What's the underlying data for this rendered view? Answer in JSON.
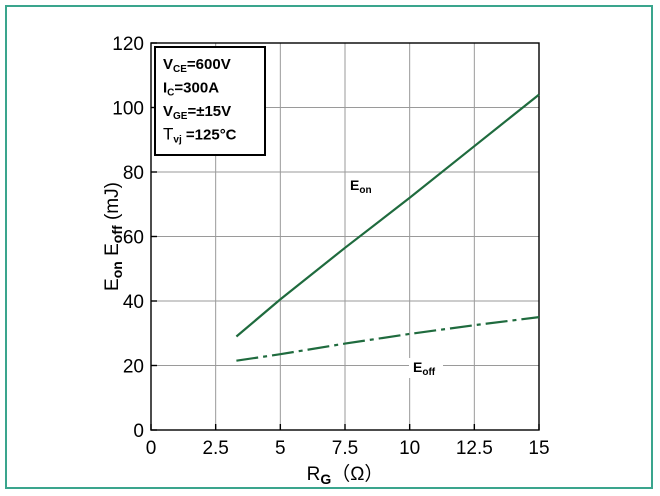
{
  "chart_data": {
    "type": "line",
    "xlabel": {
      "main": "R",
      "sub": "G",
      "unit": "（Ω）"
    },
    "ylabel": {
      "p1": "E",
      "s1": "on",
      "p2": " E",
      "s2": "off",
      "p3": " (mJ)"
    },
    "xlim": [
      0,
      15
    ],
    "ylim": [
      0,
      120
    ],
    "x_ticks": [
      0,
      2.5,
      5,
      7.5,
      10,
      12.5,
      15
    ],
    "x_tick_labels": [
      "0",
      "2.5",
      "5",
      "7.5",
      "10",
      "12.5",
      "15"
    ],
    "y_ticks": [
      0,
      20,
      40,
      60,
      80,
      100,
      120
    ],
    "y_tick_labels": [
      "0",
      "20",
      "40",
      "60",
      "80",
      "100",
      "120"
    ],
    "grid": true,
    "series_color": "#1f6b3e",
    "series": [
      {
        "name": "Eon",
        "label": {
          "main": "E",
          "sub": "on"
        },
        "style": "solid",
        "x": [
          3.3,
          5,
          7.5,
          10,
          12.5,
          15
        ],
        "y": [
          29,
          40.5,
          56.5,
          72,
          88,
          104
        ]
      },
      {
        "name": "Eoff",
        "label": {
          "main": "E",
          "sub": "off"
        },
        "style": "dashed",
        "x": [
          3.3,
          5,
          7.5,
          10,
          12.5,
          15
        ],
        "y": [
          21.5,
          23.5,
          26.8,
          29.8,
          32.5,
          35
        ]
      }
    ],
    "conditions": [
      {
        "main": "V",
        "sub": "CE",
        "value": "=600V"
      },
      {
        "main": "I",
        "sub": "C",
        "value": "=300A"
      },
      {
        "main": "V",
        "sub": "GE",
        "value": "=±15V"
      },
      {
        "main": "T",
        "sub": "vj",
        "value": " =125°C"
      }
    ]
  }
}
